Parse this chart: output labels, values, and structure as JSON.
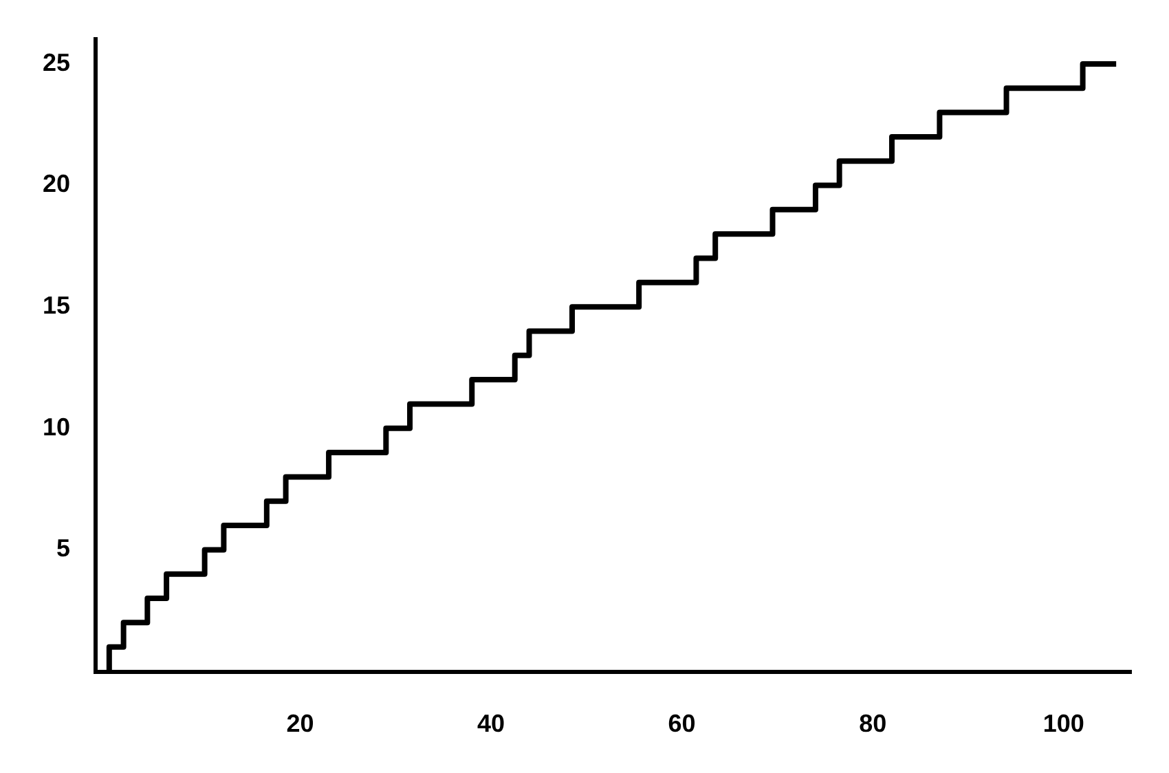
{
  "chart_data": {
    "type": "step",
    "x": [
      0,
      0,
      1.5,
      4,
      6,
      10,
      12,
      16.5,
      18.5,
      23,
      29,
      31.5,
      38,
      42.5,
      44,
      48.5,
      55.5,
      61.5,
      63.5,
      69.5,
      74,
      76.5,
      82,
      87,
      94,
      102,
      105.5
    ],
    "values": [
      0,
      1,
      2,
      3,
      4,
      5,
      6,
      7,
      8,
      9,
      10,
      11,
      12,
      13,
      14,
      15,
      16,
      17,
      18,
      19,
      20,
      21,
      22,
      23,
      24,
      25,
      25
    ],
    "color": "#000000",
    "xlim": [
      -1.5,
      107
    ],
    "ylim": [
      0,
      26
    ],
    "xticks": [
      20,
      40,
      60,
      80,
      100
    ],
    "yticks": [
      5,
      10,
      15,
      20,
      25
    ]
  }
}
